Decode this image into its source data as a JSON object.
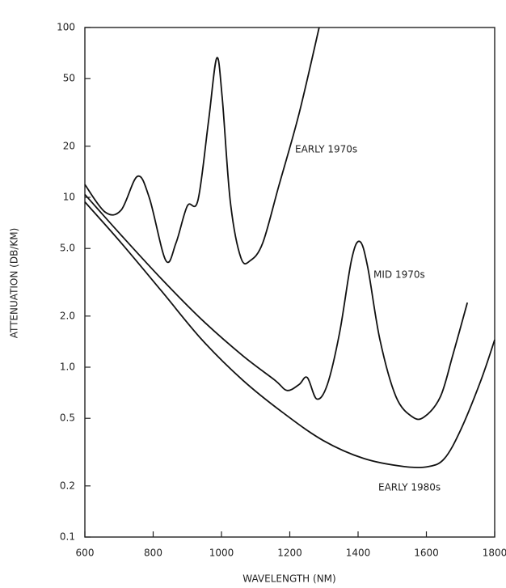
{
  "chart_data": {
    "type": "line",
    "xlabel": "WAVELENGTH (NM)",
    "ylabel": "ATTENUATION (DB/KM)",
    "log_y": true,
    "xlim": [
      600,
      1800
    ],
    "xticks": [
      600,
      800,
      1000,
      1200,
      1400,
      1600,
      1800
    ],
    "ylim": [
      0.1,
      100
    ],
    "yticks": [
      0.1,
      0.2,
      0.5,
      {
        "value": 1,
        "label": "1.0"
      },
      {
        "value": 2,
        "label": "2.0"
      },
      {
        "value": 5,
        "label": "5.0"
      },
      10,
      20,
      50,
      100
    ],
    "series": [
      {
        "name": "EARLY 1970s",
        "color": "#111111",
        "x": [
          600,
          659,
          706,
          754,
          789,
          837,
          867,
          900,
          931,
          962,
          986,
          1002,
          1026,
          1057,
          1085,
          1121,
          1168,
          1227,
          1286
        ],
        "values": [
          11.9,
          8.2,
          8.4,
          13.3,
          9.9,
          4.25,
          5.4,
          8.9,
          9.6,
          28,
          66,
          39,
          9.4,
          4.4,
          4.25,
          5.4,
          11.7,
          31,
          100
        ]
      },
      {
        "name": "MID 1970s",
        "color": "#111111",
        "x": [
          600,
          706,
          825,
          943,
          1062,
          1156,
          1192,
          1227,
          1251,
          1279,
          1310,
          1346,
          1381,
          1405,
          1428,
          1464,
          1511,
          1559,
          1594,
          1641,
          1677,
          1720
        ],
        "values": [
          10.4,
          6.0,
          3.3,
          1.9,
          1.17,
          0.84,
          0.73,
          0.79,
          0.87,
          0.65,
          0.79,
          1.6,
          4.3,
          5.5,
          3.9,
          1.45,
          0.67,
          0.51,
          0.51,
          0.67,
          1.17,
          2.4
        ]
      },
      {
        "name": "EARLY 1980s",
        "color": "#111111",
        "x": [
          600,
          706,
          825,
          943,
          1062,
          1180,
          1298,
          1417,
          1535,
          1606,
          1653,
          1701,
          1760,
          1800
        ],
        "values": [
          9.4,
          5.4,
          2.8,
          1.45,
          0.84,
          0.54,
          0.37,
          0.29,
          0.26,
          0.26,
          0.29,
          0.43,
          0.84,
          1.45
        ]
      }
    ]
  }
}
